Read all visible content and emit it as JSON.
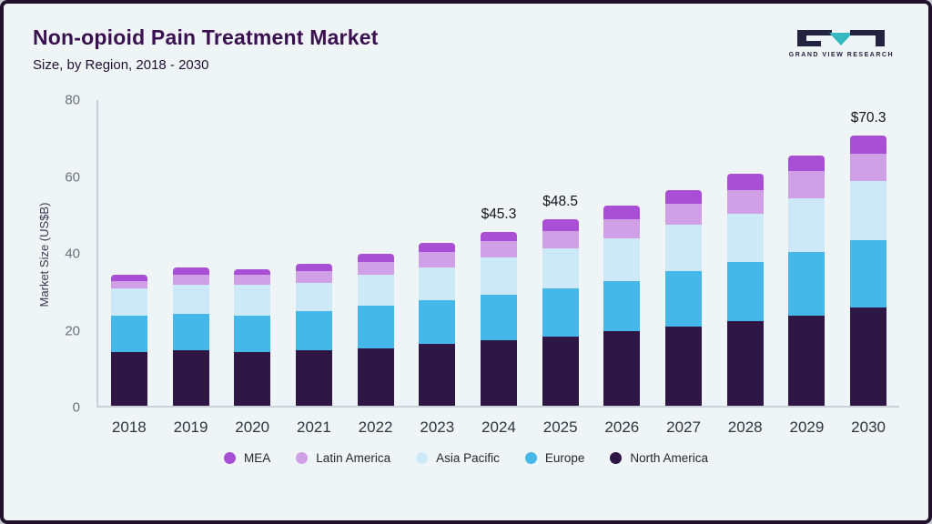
{
  "page": {
    "title": "Non-opioid Pain Treatment Market",
    "subtitle": "Size, by Region, 2018 - 2030"
  },
  "logo": {
    "text": "GRAND VIEW RESEARCH",
    "dark_color": "#23233f",
    "teal_color": "#35b8c0"
  },
  "chart_data": {
    "type": "bar",
    "stacked": true,
    "title": "Non-opioid Pain Treatment Market Size, by Region, 2018 - 2030",
    "xlabel": "",
    "ylabel": "Market Size (US$B)",
    "ylim": [
      0,
      80
    ],
    "yticks": [
      0,
      20,
      40,
      60,
      80
    ],
    "grid": false,
    "categories": [
      "2018",
      "2019",
      "2020",
      "2021",
      "2022",
      "2023",
      "2024",
      "2025",
      "2026",
      "2027",
      "2028",
      "2029",
      "2030"
    ],
    "series": [
      {
        "name": "North America",
        "color": "#2e1744",
        "values": [
          14,
          14.5,
          14,
          14.5,
          15,
          16,
          17,
          18,
          19.5,
          20.5,
          22,
          23.5,
          25.5
        ]
      },
      {
        "name": "Europe",
        "color": "#45b7e8",
        "values": [
          9.5,
          9.5,
          9.5,
          10,
          11,
          11.5,
          12,
          12.5,
          13,
          14.5,
          15.5,
          16.5,
          17.5
        ]
      },
      {
        "name": "Asia Pacific",
        "color": "#cde9f8",
        "values": [
          7,
          7.5,
          8,
          7.5,
          8,
          8.5,
          9.5,
          10.5,
          11,
          12,
          12.5,
          14,
          15.5
        ]
      },
      {
        "name": "Latin America",
        "color": "#d0a0e6",
        "values": [
          2,
          2.5,
          2.5,
          3,
          3.5,
          4,
          4.3,
          4.5,
          5,
          5.5,
          6,
          7,
          7
        ]
      },
      {
        "name": "MEA",
        "color": "#a84fd6",
        "values": [
          1.5,
          2,
          1.5,
          2,
          2,
          2.3,
          2.5,
          3,
          3.5,
          3.5,
          4.3,
          4,
          4.8
        ]
      }
    ],
    "totals": [
      34,
      36,
      35.5,
      37,
      39.5,
      42.3,
      45.3,
      48.5,
      52,
      56,
      60.3,
      65,
      70.3
    ],
    "bar_labels": {
      "2024": "$45.3",
      "2025": "$48.5",
      "2030": "$70.3"
    },
    "legend": {
      "position": "bottom",
      "items": [
        "MEA",
        "Latin America",
        "Asia Pacific",
        "Europe",
        "North America"
      ]
    }
  }
}
